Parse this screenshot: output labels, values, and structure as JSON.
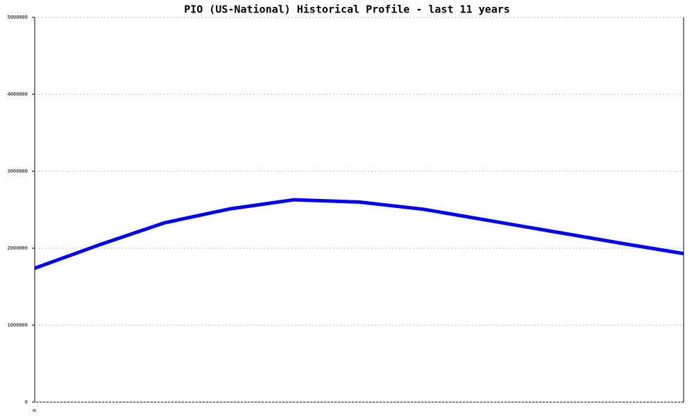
{
  "chart_data": {
    "type": "line",
    "title": "PIO (US-National) Historical Profile - last 11 years",
    "categories": [
      "0",
      null,
      null,
      null,
      null,
      null,
      null,
      null,
      null,
      null,
      null
    ],
    "series": [
      {
        "name": "PIO",
        "color": "#0000ff",
        "values": [
          1740000,
          2045000,
          2330000,
          2510000,
          2630000,
          2600000,
          2505000,
          2360000,
          2215000,
          2070000,
          1930000
        ]
      }
    ],
    "ylim": [
      0,
      5000000
    ],
    "yticks": [
      0,
      1000000,
      2000000,
      3000000,
      4000000,
      5000000
    ],
    "grid": true
  }
}
